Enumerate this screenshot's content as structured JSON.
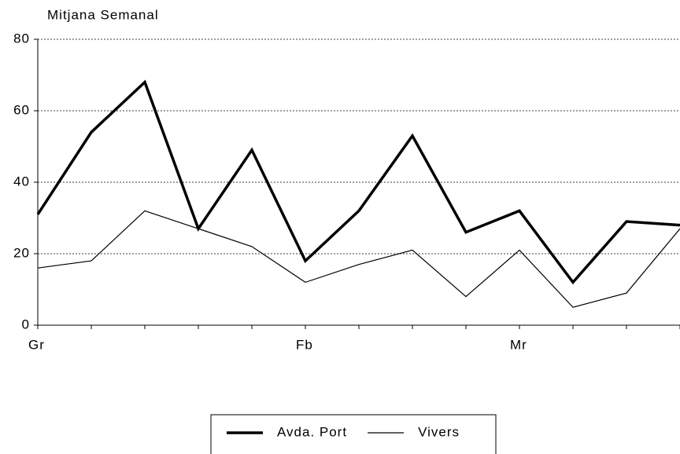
{
  "chart_data": {
    "type": "line",
    "title": "Mitjana Semanal",
    "categories": [
      "Gr",
      null,
      null,
      null,
      null,
      "Fb",
      null,
      null,
      null,
      "Mr",
      null,
      null,
      null
    ],
    "series": [
      {
        "name": "Avda. Port",
        "color": "#000000",
        "line_width": 3.5,
        "values": [
          31,
          54,
          68,
          27,
          49,
          18,
          32,
          53,
          26,
          32,
          12,
          29,
          28
        ]
      },
      {
        "name": "Vivers",
        "color": "#000000",
        "line_width": 1.2,
        "values": [
          16,
          18,
          32,
          27,
          22,
          12,
          17,
          21,
          8,
          21,
          5,
          9,
          27
        ]
      }
    ],
    "ylim": [
      0,
      80
    ],
    "yticks": [
      0,
      20,
      40,
      60,
      80
    ],
    "grid": true,
    "legend_position": "bottom"
  }
}
